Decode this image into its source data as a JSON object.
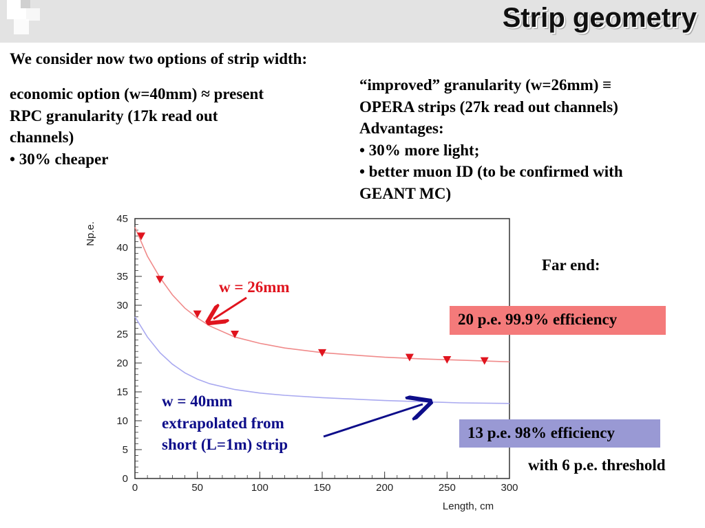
{
  "slide": {
    "title": "Strip geometry",
    "intro": "We consider now two options of strip width:",
    "economic": {
      "line1": "economic option (w=40mm) ≈ present",
      "line2": "RPC granularity (17k read out",
      "line3": "channels)",
      "bullet1": "• 30% cheaper"
    },
    "improved": {
      "line1": "“improved” granularity (w=26mm) ≡",
      "line2": "OPERA strips (27k read out channels)",
      "line3": "Advantages:",
      "bullet1": "• 30% more light;",
      "bullet2": "• better muon ID (to be confirmed with",
      "bullet3": "GEANT MC)"
    },
    "far_end": "Far end:",
    "box_red": {
      "text": "20 p.e. 99.9% efficiency",
      "color": "#f47a7a"
    },
    "box_blue": {
      "text": "13 p.e. 98% efficiency",
      "color": "#9999d4"
    },
    "threshold": "with 6 p.e. threshold",
    "annotation_red": "w = 26mm",
    "annotation_blue": {
      "line1": "w = 40mm",
      "line2": "extrapolated from",
      "line3": "short (L=1m) strip"
    },
    "colors": {
      "red_curve": "#f08a8a",
      "blue_curve": "#a9a9f0",
      "marker": "#e0141e",
      "arrow_blue": "#0d0d8a",
      "arrow_red": "#e0141e"
    }
  },
  "chart_data": {
    "type": "line",
    "xlabel": "Length, cm",
    "ylabel": "Np.e.",
    "xlim": [
      0,
      300
    ],
    "ylim": [
      0,
      45
    ],
    "x_ticks": [
      0,
      50,
      100,
      150,
      200,
      250,
      300
    ],
    "y_ticks": [
      0,
      5,
      10,
      15,
      20,
      25,
      30,
      35,
      40,
      45
    ],
    "markers": {
      "x": [
        5,
        20,
        50,
        80,
        150,
        220,
        250,
        280
      ],
      "y": [
        42,
        34.5,
        28.5,
        25,
        21.8,
        21,
        20.6,
        20.4
      ]
    },
    "series": [
      {
        "x": [
          0,
          10,
          20,
          30,
          40,
          50,
          60,
          80,
          100,
          120,
          150,
          180,
          200,
          230,
          260,
          300
        ],
        "y": [
          43.5,
          38.5,
          34.8,
          31.8,
          29.5,
          27.8,
          26.4,
          24.5,
          23.4,
          22.6,
          21.8,
          21.3,
          21.0,
          20.7,
          20.5,
          20.2
        ],
        "color": "#f08a8a"
      },
      {
        "x": [
          0,
          10,
          20,
          30,
          40,
          50,
          60,
          80,
          100,
          120,
          150,
          180,
          200,
          230,
          260,
          300
        ],
        "y": [
          28,
          24.5,
          21.8,
          19.8,
          18.3,
          17.2,
          16.4,
          15.4,
          14.8,
          14.4,
          14.0,
          13.7,
          13.5,
          13.3,
          13.1,
          13.0
        ],
        "color": "#a9a9f0"
      }
    ],
    "grid": false
  }
}
